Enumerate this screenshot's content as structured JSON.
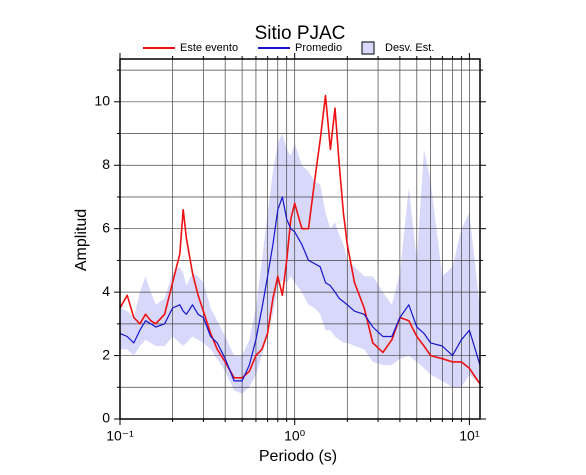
{
  "chart_data": {
    "type": "line",
    "title": "Sitio PJAC",
    "x_label": "Periodo (s)",
    "y_label": "Amplitud",
    "x_log": true,
    "grid": true,
    "x": [
      0.1,
      0.11,
      0.12,
      0.13,
      0.14,
      0.15,
      0.16,
      0.18,
      0.2,
      0.22,
      0.23,
      0.24,
      0.26,
      0.28,
      0.3,
      0.33,
      0.36,
      0.4,
      0.45,
      0.5,
      0.55,
      0.6,
      0.65,
      0.7,
      0.75,
      0.8,
      0.85,
      0.9,
      0.95,
      1.0,
      1.1,
      1.2,
      1.3,
      1.4,
      1.5,
      1.6,
      1.7,
      1.8,
      1.9,
      2.0,
      2.2,
      2.5,
      2.8,
      3.2,
      3.6,
      4.0,
      4.5,
      5.0,
      5.5,
      6,
      7,
      8,
      9,
      10,
      11.5
    ],
    "xlim": [
      0.1,
      11.5
    ],
    "ylim": [
      0,
      11.35
    ],
    "xticks": [
      {
        "value": 0.1,
        "label": "10⁻¹"
      },
      {
        "value": 1,
        "label": "10⁰"
      },
      {
        "value": 10,
        "label": "10¹"
      }
    ],
    "xticks_minor": [
      0.2,
      0.3,
      0.4,
      0.5,
      0.6,
      0.7,
      0.8,
      0.9,
      2,
      3,
      4,
      5,
      6,
      7,
      8,
      9
    ],
    "yticks": [
      0,
      2,
      4,
      6,
      8,
      10
    ],
    "yticks_minor": [
      1,
      3,
      5,
      7,
      9,
      11
    ],
    "series": [
      {
        "name": "Este evento",
        "color": "#ee1111",
        "values": [
          3.5,
          3.9,
          3.2,
          3.0,
          3.3,
          3.1,
          3.0,
          3.3,
          4.3,
          5.2,
          6.6,
          5.7,
          4.6,
          3.9,
          3.4,
          2.7,
          2.2,
          1.8,
          1.3,
          1.3,
          1.5,
          2.0,
          2.2,
          2.7,
          3.8,
          4.5,
          3.9,
          5.0,
          6.3,
          6.8,
          6.0,
          6.0,
          7.5,
          8.8,
          10.2,
          8.5,
          9.8,
          8.0,
          6.5,
          5.5,
          4.3,
          3.5,
          2.4,
          2.1,
          2.5,
          3.2,
          3.1,
          2.6,
          2.3,
          2.0,
          1.9,
          1.8,
          1.8,
          1.6,
          1.1
        ]
      },
      {
        "name": "Promedio",
        "color": "#1515cc",
        "values": [
          2.7,
          2.6,
          2.4,
          2.8,
          3.1,
          3.0,
          2.9,
          3.0,
          3.5,
          3.6,
          3.4,
          3.3,
          3.6,
          3.3,
          3.2,
          2.6,
          2.4,
          1.9,
          1.2,
          1.2,
          1.7,
          2.5,
          3.5,
          4.5,
          5.5,
          6.6,
          7.0,
          6.3,
          6.0,
          5.9,
          5.5,
          5.0,
          4.9,
          4.8,
          4.3,
          4.2,
          4.0,
          3.8,
          3.7,
          3.6,
          3.4,
          3.3,
          2.9,
          2.6,
          2.6,
          3.2,
          3.6,
          2.9,
          2.7,
          2.4,
          2.3,
          2.0,
          2.5,
          2.8,
          1.7
        ]
      }
    ],
    "band": {
      "name": "Desv. Est.",
      "color": "#d8d8fa",
      "lower": [
        2.2,
        2.2,
        2.0,
        2.3,
        2.5,
        2.4,
        2.3,
        2.3,
        2.6,
        2.4,
        2.3,
        2.4,
        2.6,
        2.5,
        2.4,
        2.2,
        1.9,
        1.5,
        0.9,
        0.8,
        1.0,
        1.4,
        2.0,
        2.7,
        3.3,
        4.2,
        4.4,
        4.3,
        4.5,
        4.3,
        4.0,
        3.6,
        3.5,
        3.3,
        2.8,
        2.8,
        2.6,
        2.5,
        2.4,
        2.4,
        2.3,
        2.2,
        1.8,
        1.7,
        1.7,
        1.9,
        2.0,
        1.8,
        1.6,
        1.4,
        1.2,
        1.0,
        1.0,
        1.4,
        1.1
      ],
      "upper": [
        3.5,
        3.4,
        3.2,
        4.0,
        4.5,
        4.0,
        3.6,
        3.8,
        4.6,
        4.8,
        4.6,
        4.2,
        4.6,
        4.5,
        4.3,
        3.5,
        3.1,
        2.6,
        2.0,
        2.0,
        2.5,
        3.5,
        5.0,
        6.5,
        7.8,
        8.7,
        9.0,
        8.5,
        8.3,
        8.7,
        8.0,
        7.8,
        7.5,
        7.4,
        6.5,
        6.0,
        6.2,
        5.8,
        5.5,
        5.0,
        4.8,
        4.5,
        4.5,
        4.0,
        3.6,
        4.6,
        7.3,
        5.0,
        8.5,
        7.5,
        4.5,
        4.8,
        6.0,
        6.5,
        3.5
      ]
    }
  }
}
